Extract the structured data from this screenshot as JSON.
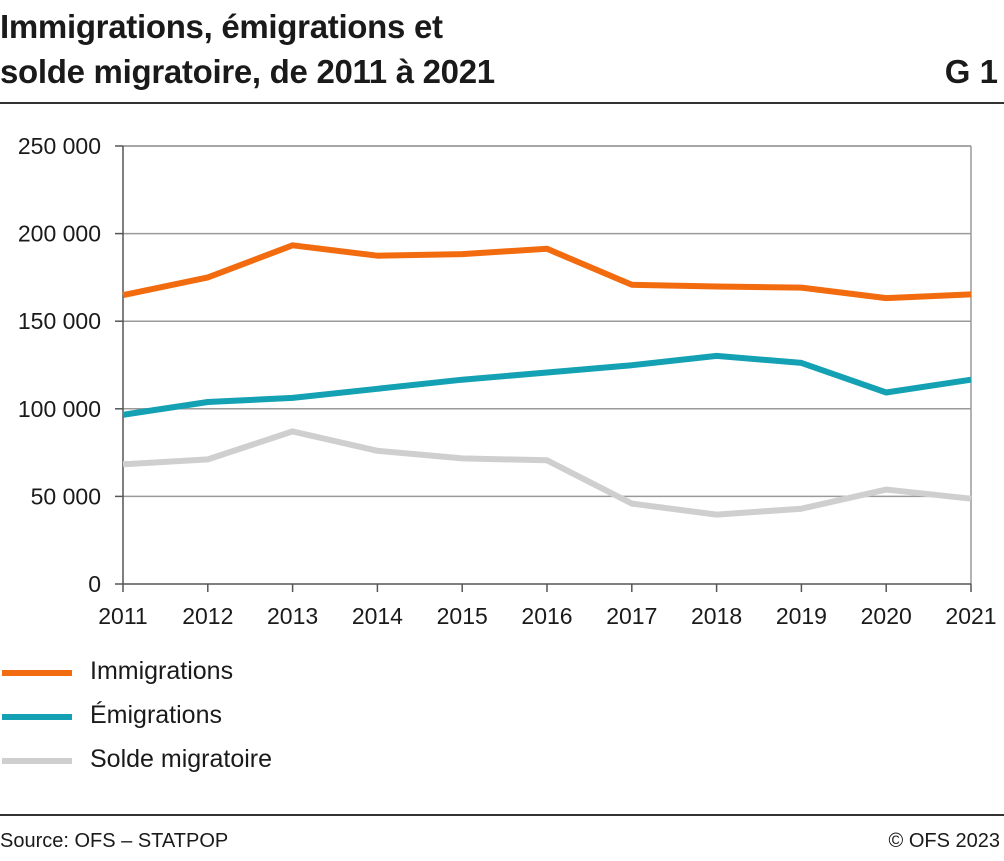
{
  "header": {
    "title_line1": "Immigrations, émigrations et",
    "title_line2": "solde migratoire, de 2011 à 2021",
    "chart_id": "G 1"
  },
  "footer": {
    "source": "Source: OFS – STATPOP",
    "copyright": "© OFS 2023"
  },
  "chart_data": {
    "type": "line",
    "title": "Immigrations, émigrations et solde migratoire, de 2011 à 2021",
    "xlabel": "",
    "ylabel": "",
    "x": [
      "2011",
      "2012",
      "2013",
      "2014",
      "2015",
      "2016",
      "2017",
      "2018",
      "2019",
      "2020",
      "2021"
    ],
    "ylim": [
      0,
      250000
    ],
    "yticks": [
      0,
      50000,
      100000,
      150000,
      200000,
      250000
    ],
    "ytick_labels": [
      "0",
      "50 000",
      "100 000",
      "150 000",
      "200 000",
      "250 000"
    ],
    "grid": true,
    "legend_position": "bottom-left",
    "series": [
      {
        "name": "Immigrations",
        "color": "#f26b0f",
        "values": [
          164900,
          175000,
          193300,
          187400,
          188300,
          191300,
          170800,
          169800,
          169200,
          163200,
          165300
        ]
      },
      {
        "name": "Émigrations",
        "color": "#13a1b3",
        "values": [
          96600,
          103900,
          106200,
          111400,
          116600,
          120700,
          124900,
          130200,
          126200,
          109300,
          116600
        ]
      },
      {
        "name": "Solde migratoire",
        "color": "#cfcfcf",
        "values": [
          68300,
          71100,
          87100,
          76000,
          71700,
          70600,
          45900,
          39600,
          43000,
          53900,
          48700
        ]
      }
    ]
  }
}
